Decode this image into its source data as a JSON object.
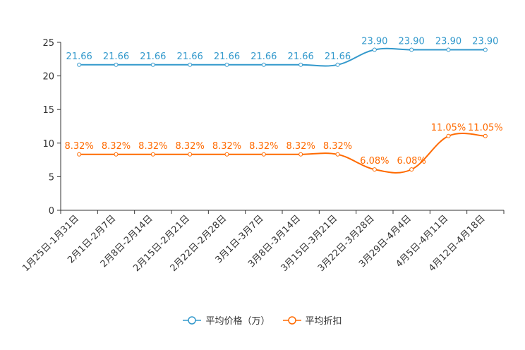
{
  "chart_data": {
    "type": "line",
    "categories": [
      "1月25日-1月31日",
      "2月1日-2月7日",
      "2月8日-2月14日",
      "2月15日-2月21日",
      "2月22日-2月28日",
      "3月1日-3月7日",
      "3月8日-3月14日",
      "3月15日-3月21日",
      "3月22日-3月28日",
      "3月29日-4月4日",
      "4月5日-4月11日",
      "4月12日-4月18日"
    ],
    "series": [
      {
        "name": "平均价格（万）",
        "color": "#3399cc",
        "values": [
          21.66,
          21.66,
          21.66,
          21.66,
          21.66,
          21.66,
          21.66,
          21.66,
          23.9,
          23.9,
          23.9,
          23.9
        ],
        "labels": [
          "21.66",
          "21.66",
          "21.66",
          "21.66",
          "21.66",
          "21.66",
          "21.66",
          "21.66",
          "23.90",
          "23.90",
          "23.90",
          "23.90"
        ]
      },
      {
        "name": "平均折扣",
        "color": "#ff6a00",
        "values": [
          8.32,
          8.32,
          8.32,
          8.32,
          8.32,
          8.32,
          8.32,
          8.32,
          6.08,
          6.08,
          11.05,
          11.05
        ],
        "labels": [
          "8.32%",
          "8.32%",
          "8.32%",
          "8.32%",
          "8.32%",
          "8.32%",
          "8.32%",
          "8.32%",
          "6.08%",
          "6.08%",
          "11.05%",
          "11.05%"
        ]
      }
    ],
    "yticks": [
      "0",
      "5",
      "10",
      "15",
      "20",
      "25"
    ],
    "ylim": [
      0,
      25
    ],
    "legend_position": "bottom"
  }
}
